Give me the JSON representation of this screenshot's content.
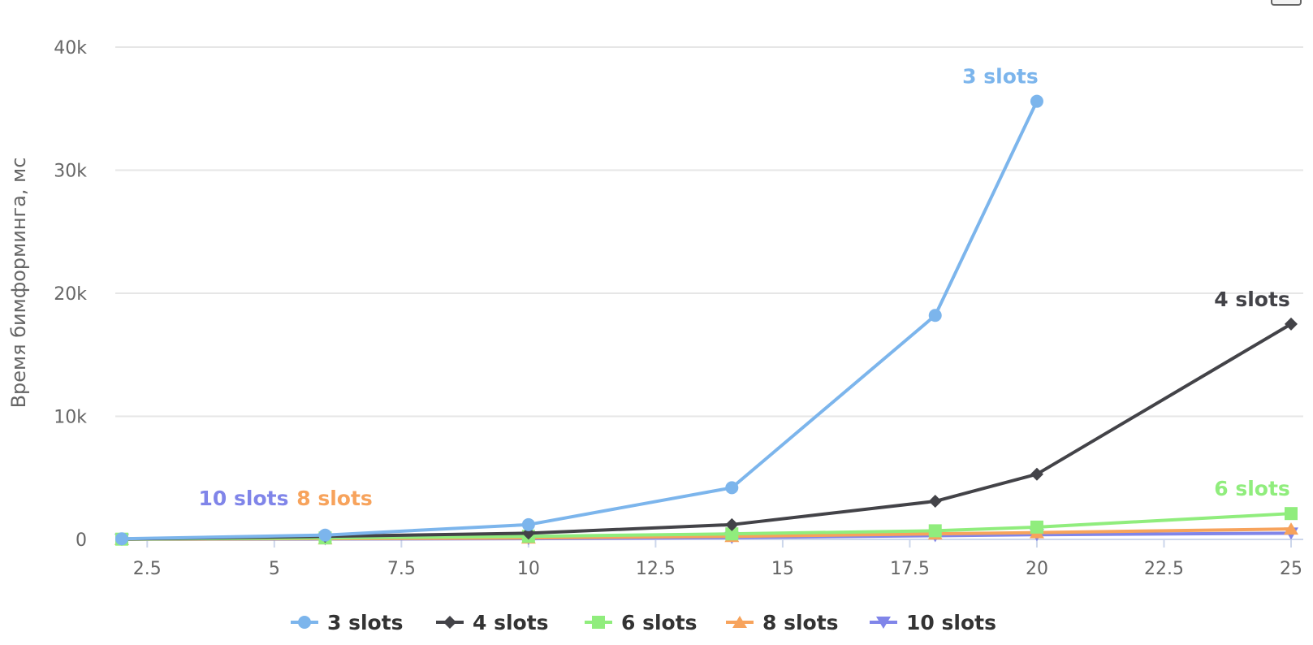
{
  "chart_data": {
    "type": "line",
    "xlabel": "",
    "ylabel": "Время бимформинга, мс",
    "xlim": [
      2,
      25
    ],
    "ylim": [
      0,
      40000
    ],
    "x_ticks": [
      2.5,
      5,
      7.5,
      10,
      12.5,
      15,
      17.5,
      20,
      22.5,
      25
    ],
    "x_tick_labels": [
      "2.5",
      "5",
      "7.5",
      "10",
      "12.5",
      "15",
      "17.5",
      "20",
      "22.5",
      "25"
    ],
    "y_ticks": [
      0,
      10000,
      20000,
      30000,
      40000
    ],
    "y_tick_labels": [
      "0",
      "10k",
      "20k",
      "30k",
      "40k"
    ],
    "grid": "horizontal",
    "legend_position": "bottom-center",
    "series": [
      {
        "name": "3 slots",
        "color": "#7cb5ec",
        "marker": "circle",
        "x": [
          2,
          6,
          10,
          14,
          18,
          20
        ],
        "y": [
          50,
          350,
          1200,
          4200,
          18200,
          35600
        ]
      },
      {
        "name": "4 slots",
        "color": "#434348",
        "marker": "diamond",
        "x": [
          2,
          6,
          10,
          14,
          18,
          20,
          25
        ],
        "y": [
          30,
          250,
          500,
          1200,
          3100,
          5300,
          17500
        ]
      },
      {
        "name": "6 slots",
        "color": "#90ed7d",
        "marker": "square",
        "x": [
          2,
          6,
          10,
          14,
          18,
          20,
          25
        ],
        "y": [
          20,
          120,
          250,
          450,
          700,
          1000,
          2100
        ]
      },
      {
        "name": "8 slots",
        "color": "#f7a35c",
        "marker": "triangle",
        "x": [
          2,
          6,
          10,
          14,
          18,
          20,
          25
        ],
        "y": [
          10,
          60,
          120,
          250,
          450,
          550,
          850
        ]
      },
      {
        "name": "10 slots",
        "color": "#8085e9",
        "marker": "triangle-down",
        "x": [
          2,
          6,
          10,
          14,
          18,
          20,
          25
        ],
        "y": [
          5,
          30,
          60,
          150,
          300,
          380,
          500
        ]
      }
    ]
  }
}
